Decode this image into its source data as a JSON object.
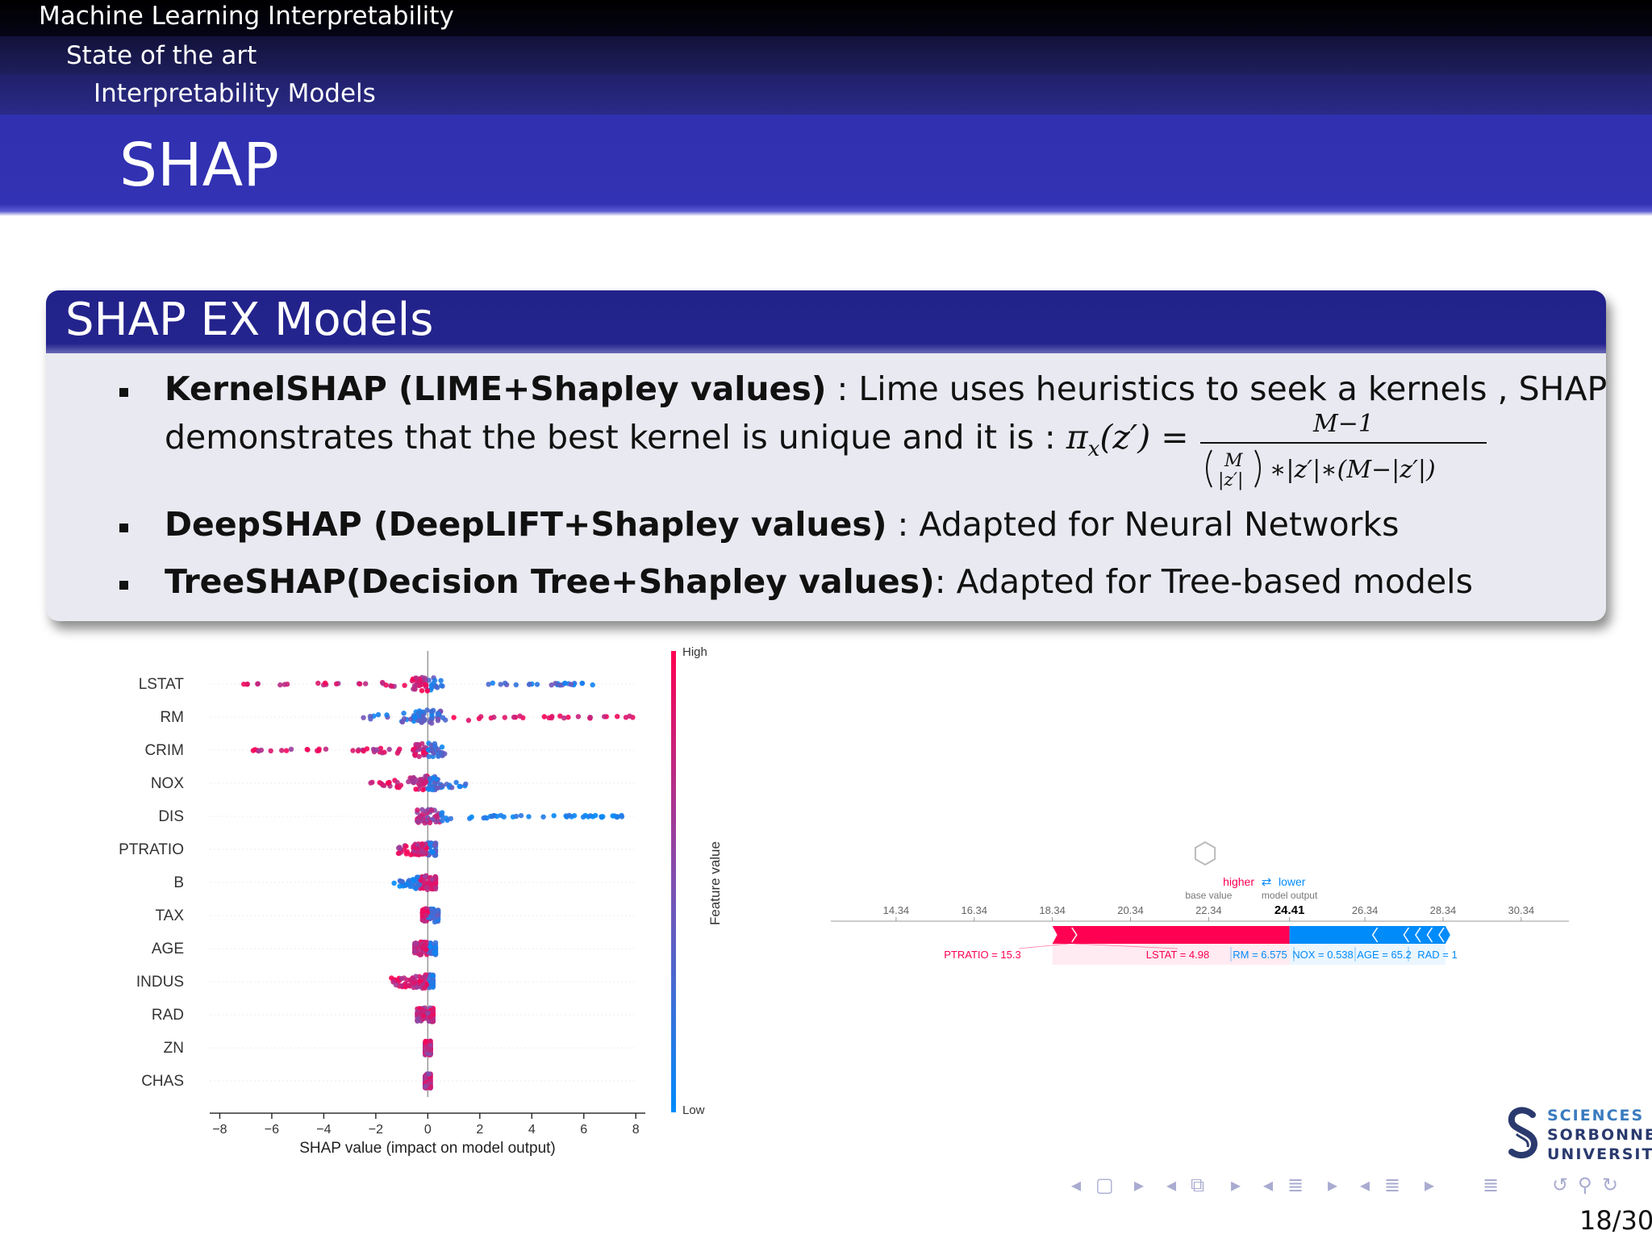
{
  "header": {
    "section": "Machine Learning Interpretability",
    "subsection": "State of the art",
    "subsubsection": "Interpretability Models",
    "title": "SHAP"
  },
  "block": {
    "title": "SHAP EX Models",
    "bullets": [
      {
        "bold": "KernelSHAP (LIME+Shapley values)",
        "text": " : Lime uses heuristics to seek a kernels , SHAP",
        "text2": "demonstrates that the best kernel is unique and it is : ",
        "formula_lhs": "π",
        "formula_sub": "x",
        "formula_arg": "(z′) =",
        "frac_num": "M−1",
        "frac_den": "(M over |z′|) ∗ |z′| ∗ (M − |z′|)"
      },
      {
        "bold": "DeepSHAP (DeepLIFT+Shapley values)",
        "text": " : Adapted for Neural Networks"
      },
      {
        "bold": "TreeSHAP(Decision Tree+Shapley values)",
        "text": ": Adapted for Tree-based models"
      }
    ]
  },
  "chart_data": [
    {
      "type": "scatter",
      "title": "",
      "xlabel": "SHAP value (impact on model output)",
      "ylabel": "",
      "xlim": [
        -8,
        9
      ],
      "xticks": [
        -8,
        -6,
        -4,
        -2,
        0,
        2,
        4,
        6,
        8
      ],
      "features": [
        "LSTAT",
        "RM",
        "CRIM",
        "NOX",
        "DIS",
        "PTRATIO",
        "B",
        "TAX",
        "AGE",
        "INDUS",
        "RAD",
        "ZN",
        "CHAS"
      ],
      "feature_ranges": [
        {
          "feature": "LSTAT",
          "min": -7.3,
          "max": 6.7
        },
        {
          "feature": "RM",
          "min": -2.7,
          "max": 8.3
        },
        {
          "feature": "CRIM",
          "min": -6.8,
          "max": 0.9
        },
        {
          "feature": "NOX",
          "min": -2.2,
          "max": 1.5
        },
        {
          "feature": "DIS",
          "min": -0.4,
          "max": 8.0
        },
        {
          "feature": "PTRATIO",
          "min": -1.2,
          "max": 0.3
        },
        {
          "feature": "B",
          "min": -1.3,
          "max": 0.3
        },
        {
          "feature": "TAX",
          "min": -0.2,
          "max": 0.4
        },
        {
          "feature": "AGE",
          "min": -0.5,
          "max": 0.3
        },
        {
          "feature": "INDUS",
          "min": -1.4,
          "max": 0.2
        },
        {
          "feature": "RAD",
          "min": -0.4,
          "max": 0.2
        },
        {
          "feature": "ZN",
          "min": -0.1,
          "max": 0.1
        },
        {
          "feature": "CHAS",
          "min": -0.1,
          "max": 0.1
        }
      ],
      "colorbar": {
        "label": "Feature value",
        "high": "High",
        "low": "Low",
        "high_color": "#ff0052",
        "low_color": "#008bfb"
      }
    },
    {
      "type": "bar",
      "title": "",
      "legend": {
        "higher": "higher",
        "arrows": "⇄",
        "lower": "lower"
      },
      "axis_ticks": [
        14.34,
        16.34,
        18.34,
        20.34,
        22.34,
        24.41,
        26.34,
        28.34,
        30.34
      ],
      "tick_labels": [
        "14.34",
        "16.34",
        "18.34",
        "20.34",
        "22.34",
        "24.41",
        "26.34",
        "28.34",
        "30.34"
      ],
      "base_value_label": "base value",
      "model_output_label": "model output",
      "base_value": 22.34,
      "model_output": 24.41,
      "positive_features": [
        {
          "label": "PTRATIO = 15.3",
          "start": 18.34,
          "end": 18.9
        },
        {
          "label": "LSTAT = 4.98",
          "start": 18.9,
          "end": 24.41
        }
      ],
      "negative_features": [
        {
          "label": "RM = 6.575",
          "start": 24.41,
          "end": 26.6
        },
        {
          "label": "NOX = 0.538",
          "start": 26.6,
          "end": 27.4
        },
        {
          "label": "AGE = 65.2",
          "start": 27.4,
          "end": 28.3
        },
        {
          "label": "RAD = 1",
          "start": 28.3,
          "end": 28.4
        }
      ],
      "colors": {
        "positive": "#ff0052",
        "negative": "#008bfb"
      }
    }
  ],
  "logo": {
    "line1": "SCIENCES",
    "line2": "SORBONNE",
    "line3": "UNIVERSITÉ",
    "color": "#2a3a6e"
  },
  "navigation": {
    "page": "18/30"
  }
}
